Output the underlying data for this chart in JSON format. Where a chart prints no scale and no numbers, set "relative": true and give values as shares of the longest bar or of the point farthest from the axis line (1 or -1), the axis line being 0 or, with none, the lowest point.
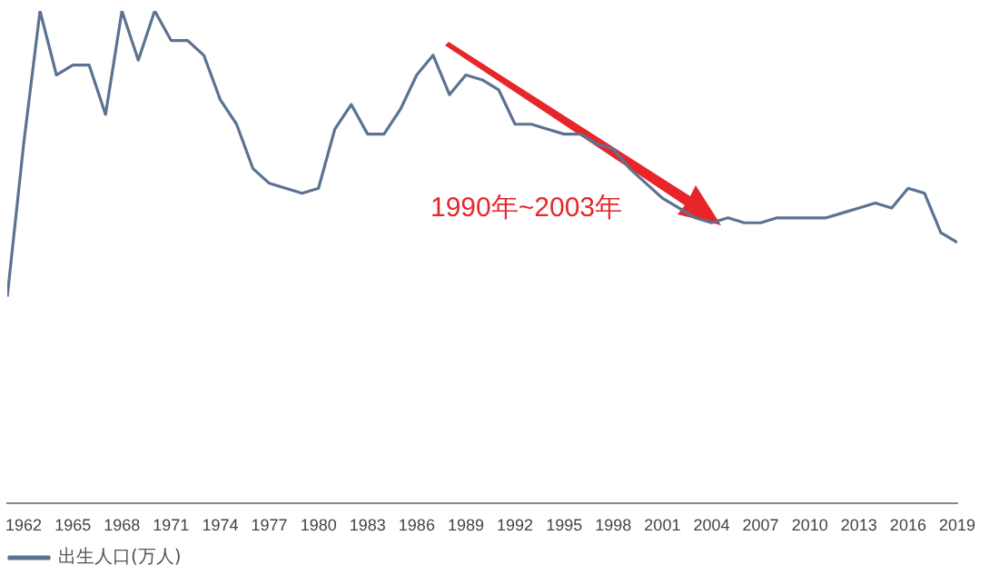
{
  "chart_data": {
    "type": "line",
    "relative": true,
    "legend": "bottom",
    "grid": false,
    "marker": "none",
    "line_style": "solid",
    "x": [
      1961,
      1962,
      1963,
      1964,
      1965,
      1966,
      1967,
      1968,
      1969,
      1970,
      1971,
      1972,
      1973,
      1974,
      1975,
      1976,
      1977,
      1978,
      1979,
      1980,
      1981,
      1982,
      1983,
      1984,
      1985,
      1986,
      1987,
      1988,
      1989,
      1990,
      1991,
      1992,
      1993,
      1994,
      1995,
      1996,
      1997,
      1998,
      1999,
      2000,
      2001,
      2002,
      2003,
      2004,
      2005,
      2006,
      2007,
      2008,
      2009,
      2010,
      2011,
      2012,
      2013,
      2014,
      2015,
      2016,
      2017,
      2018,
      2019
    ],
    "xlim": [
      1961,
      2019
    ],
    "xticks": [
      1962,
      1965,
      1968,
      1971,
      1974,
      1977,
      1980,
      1983,
      1986,
      1989,
      1992,
      1995,
      1998,
      2001,
      2004,
      2007,
      2010,
      2013,
      2016,
      2019
    ],
    "series": [
      {
        "name": "出生人口(万人)",
        "color": "#5b7390",
        "values": [
          0.42,
          0.73,
          1,
          0.87,
          0.89,
          0.89,
          0.79,
          1,
          0.9,
          1,
          0.94,
          0.94,
          0.91,
          0.82,
          0.77,
          0.68,
          0.65,
          0.64,
          0.63,
          0.64,
          0.76,
          0.81,
          0.75,
          0.75,
          0.8,
          0.87,
          0.91,
          0.83,
          0.87,
          0.86,
          0.84,
          0.77,
          0.77,
          0.76,
          0.75,
          0.75,
          0.73,
          0.72,
          0.68,
          0.65,
          0.62,
          0.6,
          0.58,
          0.57,
          0.58,
          0.57,
          0.57,
          0.58,
          0.58,
          0.58,
          0.58,
          0.59,
          0.6,
          0.61,
          0.6,
          0.64,
          0.63,
          0.55,
          0.53
        ]
      }
    ],
    "annotations": [
      "1990年~2003年"
    ]
  }
}
